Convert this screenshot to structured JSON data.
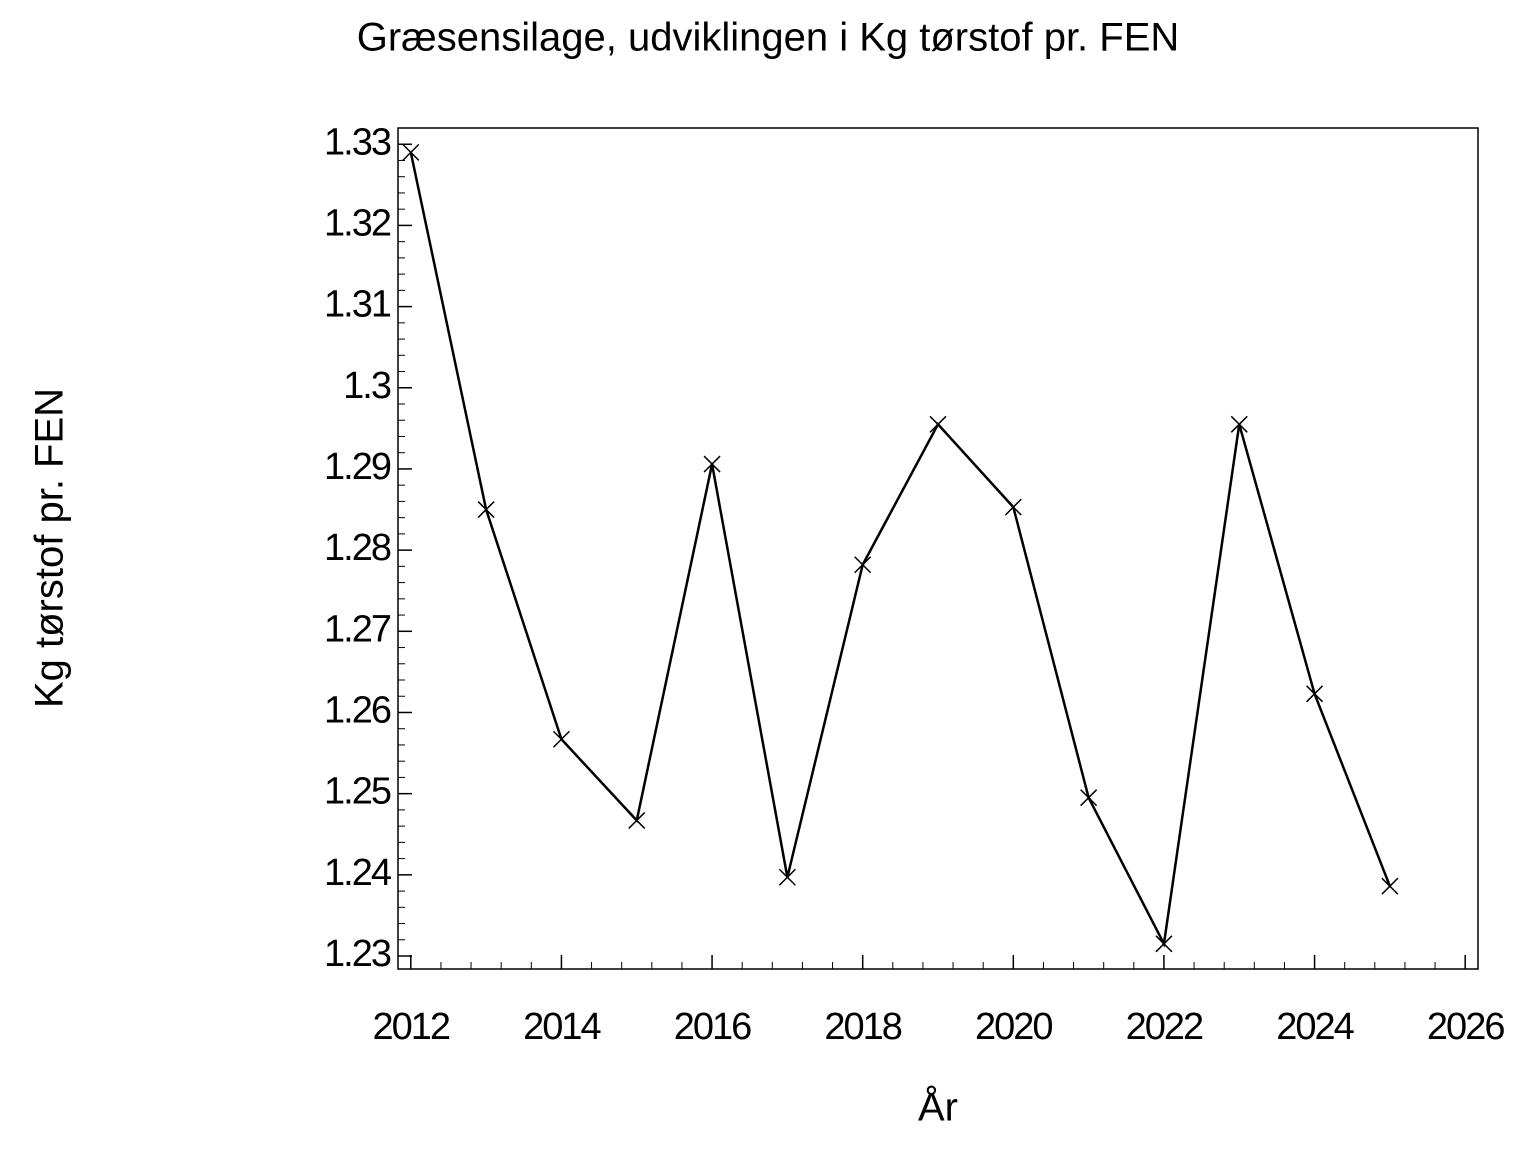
{
  "chart_data": {
    "type": "line",
    "title": "Græsensilage, udviklingen i Kg tørstof pr. FEN",
    "x_label": "År",
    "y_label": "Kg tørstof pr. FEN",
    "series": [
      {
        "color": "#000000",
        "x": [
          2012,
          2013,
          2014,
          2015,
          2016,
          2017,
          2018,
          2019,
          2020,
          2021,
          2022,
          2023,
          2024,
          2025
        ],
        "values": [
          1.329,
          1.285,
          1.2567,
          1.2467,
          1.2906,
          1.2397,
          1.2782,
          1.2955,
          1.2853,
          1.2495,
          1.2315,
          1.2955,
          1.2623,
          1.2386
        ]
      }
    ],
    "xlim": [
      2011.83,
      2026.17
    ],
    "xticks": [
      2012,
      2014,
      2016,
      2018,
      2020,
      2022,
      2024,
      2026
    ],
    "ylim": [
      1.2284,
      1.332
    ],
    "yticks": [
      1.23,
      1.24,
      1.25,
      1.26,
      1.27,
      1.28,
      1.29,
      1.3,
      1.31,
      1.32,
      1.33
    ]
  }
}
